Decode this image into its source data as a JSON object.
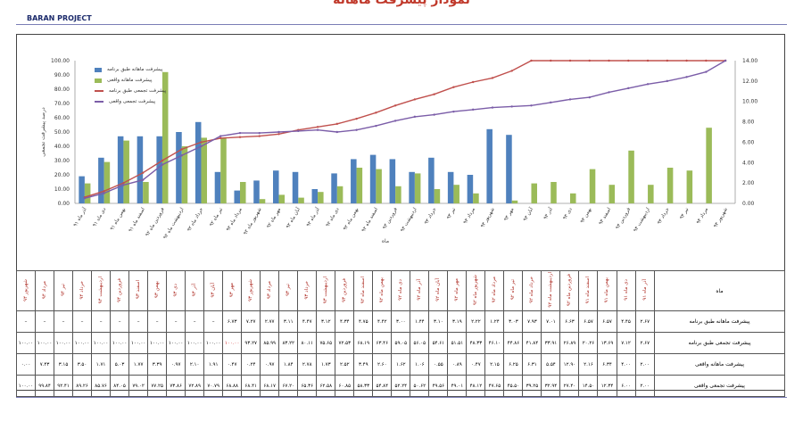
{
  "page": {
    "title": "نمودار پیشرفت ماهانه",
    "brand": "BARAN PROJECT"
  },
  "colors": {
    "planned_monthly": "#4f81bd",
    "actual_monthly": "#9bbb59",
    "planned_cumulative": "#c0504d",
    "actual_cumulative": "#7b5da8"
  },
  "chart_data": {
    "type": "bar",
    "title": "",
    "xlabel": "ماه",
    "ylabel": "درصد پیشرفت تجمعی",
    "ylim": [
      0,
      100
    ],
    "y2lim": [
      0,
      14
    ],
    "yticks": [
      "0.00",
      "10.00",
      "20.00",
      "30.00",
      "40.00",
      "50.00",
      "60.00",
      "70.00",
      "80.00",
      "90.00",
      "100.00"
    ],
    "y2ticks": [
      "0.00",
      "2.00",
      "4.00",
      "6.00",
      "8.00",
      "10.00",
      "12.00",
      "14.00"
    ],
    "legend_position": "top-left",
    "categories": [
      "آذر ماه ۹۱",
      "دی ماه ۹۱",
      "بهمن ماه ۹۱",
      "اسفند ماه ۹۱",
      "فروردین ماه ۹۲",
      "اردیبهشت ماه ۹۲",
      "خرداد ماه ۹۲",
      "تیر ماه ۹۲",
      "مرداد ماه ۹۲",
      "شهریور ماه ۹۲",
      "مهر ماه ۹۲",
      "آبان ماه ۹۲",
      "آذر ماه ۹۲",
      "دی ماه ۹۲",
      "بهمن ماه ۹۲",
      "اسفند ماه ۹۲",
      "فروردین ۹۳",
      "اردیبهشت ۹۳",
      "خرداد ۹۳",
      "تیر ۹۳",
      "مرداد ۹۳",
      "شهریور ۹۳",
      "مهر ۹۳",
      "آبان ۹۳",
      "آذر ۹۳",
      "دی ۹۳",
      "بهمن ۹۳",
      "اسفند ۹۳",
      "فروردین ۹۴",
      "اردیبهشت ۹۴",
      "خرداد ۹۴",
      "تیر ۹۴",
      "مرداد ۹۴",
      "شهریور ۹۴"
    ],
    "series": [
      {
        "name": "پیشرفت ماهانه طبق برنامه",
        "type": "bar",
        "axis": "left",
        "values": [
          19,
          32,
          47,
          47,
          47,
          50,
          57,
          22,
          9,
          16,
          23,
          22,
          10,
          21,
          31,
          34,
          31,
          22,
          32,
          22,
          20,
          52,
          48,
          0,
          0,
          0,
          0,
          0,
          0,
          0,
          0,
          0,
          0,
          0
        ]
      },
      {
        "name": "پیشرفت ماهانه واقعی",
        "type": "bar",
        "axis": "left",
        "values": [
          14,
          29,
          44,
          15,
          92,
          40,
          46,
          46,
          15,
          3,
          6,
          4,
          8,
          12,
          25,
          24,
          12,
          21,
          10,
          13,
          7,
          0,
          2,
          14,
          15,
          7,
          24,
          13,
          37,
          13,
          25,
          23,
          53,
          0
        ]
      },
      {
        "name": "پیشرفت تجمعی طبق برنامه",
        "type": "line",
        "axis": "right",
        "values": [
          0.6,
          1.2,
          2.0,
          3.0,
          4.2,
          5.3,
          6.0,
          6.4,
          6.5,
          6.6,
          6.8,
          7.2,
          7.5,
          7.8,
          8.3,
          8.9,
          9.6,
          10.2,
          10.7,
          11.4,
          11.9,
          12.3,
          13.0,
          14,
          14,
          14,
          14,
          14,
          14,
          14,
          14,
          14,
          14,
          14
        ]
      },
      {
        "name": "پیشرفت تجمعی واقعی",
        "type": "line",
        "axis": "right",
        "values": [
          0.5,
          1.0,
          1.8,
          2.3,
          3.8,
          4.7,
          5.6,
          6.6,
          6.9,
          6.9,
          7.0,
          7.1,
          7.2,
          7.0,
          7.2,
          7.6,
          8.1,
          8.5,
          8.7,
          9.0,
          9.2,
          9.4,
          9.5,
          9.6,
          9.9,
          10.2,
          10.4,
          10.9,
          11.3,
          11.7,
          12.0,
          12.4,
          12.9,
          14.0
        ]
      }
    ]
  },
  "table": {
    "header_label": "ماه",
    "months": [
      "آذر ماه ۹۱",
      "دی ماه ۹۱",
      "بهمن ماه ۹۱",
      "اسفند ماه ۹۱",
      "فروردین ماه ۹۲",
      "اردیبهشت ماه ۹۲",
      "خرداد ماه ۹۲",
      "تیر ماه ۹۲",
      "مرداد ماه ۹۲",
      "شهریور ماه ۹۲",
      "مهر ماه ۹۲",
      "آبان ماه ۹۲",
      "آذر ماه ۹۲",
      "دی ماه ۹۲",
      "بهمن ماه ۹۲",
      "اسفند ماه ۹۲",
      "فروردین ۹۳",
      "اردیبهشت ۹۳",
      "خرداد ۹۳",
      "تیر ۹۳",
      "مرداد ۹۳",
      "شهریور ۹۳",
      "مهر ۹۳",
      "آبان ۹۳",
      "آذر ۹۳",
      "دی ۹۳",
      "بهمن ۹۳",
      "اسفند ۹۳",
      "فروردین ۹۴",
      "اردیبهشت ۹۴",
      "خرداد ۹۴",
      "تیر ۹۴",
      "مرداد ۹۴",
      "شهریور ۹۴"
    ],
    "rows": [
      {
        "label": "پیشرفت ماهانه طبق برنامه",
        "values": [
          "۲.۶۷",
          "۴.۴۵",
          "۶.۵۷",
          "۶.۵۷",
          "۶.۶۳",
          "۷.۰۱",
          "۷.۹۳",
          "۳.۰۳",
          "۱.۲۴",
          "۲.۲۲",
          "۳.۱۹",
          "۳.۱۰",
          "۱.۴۴",
          "۳.۰۰",
          "۴.۴۲",
          "۴.۷۵",
          "۴.۳۴",
          "۳.۱۲",
          "۴.۴۷",
          "۳.۱۱",
          "۲.۷۷",
          "۷.۲۷",
          "۶.۷۳",
          "–",
          "–",
          "–",
          "–",
          "–",
          "–",
          "–",
          "–",
          "–",
          "–",
          "–"
        ]
      },
      {
        "label": "پیشرفت تجمعی طبق برنامه",
        "values": [
          "۲.۶۷",
          "۷.۱۲",
          "۱۳.۶۹",
          "۲۰.۲۶",
          "۲۶.۸۹",
          "۳۳.۹۱",
          "۴۱.۸۴",
          "۴۴.۸۶",
          "۴۶.۱۰",
          "۴۸.۳۳",
          "۵۱.۵۱",
          "۵۴.۶۱",
          "۵۶.۰۵",
          "۵۹.۰۵",
          "۶۳.۴۶",
          "۶۸.۱۹",
          "۷۲.۵۳",
          "۷۵.۶۵",
          "۸۰.۱۱",
          "۸۳.۲۲",
          "۸۵.۹۹",
          "۹۳.۲۷",
          "۱۰۰.۰۰",
          "۱۰۰.۰۰",
          "۱۰۰.۰۰",
          "۱۰۰.۰۰",
          "۱۰۰.۰۰",
          "۱۰۰.۰۰",
          "۱۰۰.۰۰",
          "۱۰۰.۰۰",
          "۱۰۰.۰۰",
          "۱۰۰.۰۰",
          "۱۰۰.۰۰",
          "۱۰۰.۰۰"
        ]
      },
      {
        "label": "پیشرفت ماهانه واقعی",
        "values": [
          "۲.۰۰",
          "۴.۰۰",
          "۶.۳۴",
          "۲.۱۶",
          "۱۲.۹۰",
          "۵.۵۴",
          "۶.۳۱",
          "۶.۲۵",
          "۲.۱۵",
          "۰.۴۷",
          "۰.۸۹",
          "۰.۵۵",
          "۱.۰۶",
          "۱.۶۲",
          "۲.۶۰",
          "۳.۴۹",
          "۲.۵۲",
          "۱.۷۳",
          "۲.۷۸",
          "۱.۸۴",
          "۰.۹۷",
          "۰.۲۴",
          "۰.۴۷",
          "۱.۹۱",
          "۲.۱۰",
          "۰.۹۷",
          "۳.۳۹",
          "۱.۷۷",
          "۵.۰۳",
          "۱.۷۱",
          "۳.۵۰",
          "۳.۱۵",
          "۷.۴۳",
          "۰.۰۰"
        ]
      },
      {
        "label": "پیشرفت تجمعی واقعی",
        "values": [
          "۲.۰۰",
          "۶.۰۰",
          "۱۲.۳۴",
          "۱۴.۵۰",
          "۲۷.۴۰",
          "۳۲.۹۴",
          "۳۹.۲۵",
          "۴۵.۵۰",
          "۴۷.۶۵",
          "۴۸.۱۲",
          "۴۹.۰۱",
          "۴۹.۵۶",
          "۵۰.۶۲",
          "۵۲.۲۴",
          "۵۴.۸۴",
          "۵۸.۳۳",
          "۶۰.۸۵",
          "۶۲.۵۸",
          "۶۵.۳۶",
          "۶۷.۲۰",
          "۶۸.۱۷",
          "۶۸.۴۱",
          "۶۸.۸۸",
          "۷۰.۷۹",
          "۷۲.۸۹",
          "۷۳.۸۶",
          "۷۷.۲۵",
          "۷۹.۰۲",
          "۸۴.۰۵",
          "۸۵.۷۶",
          "۸۹.۲۶",
          "۹۲.۴۱",
          "۹۹.۸۴",
          "۱۰۰.۰۰"
        ]
      }
    ]
  }
}
